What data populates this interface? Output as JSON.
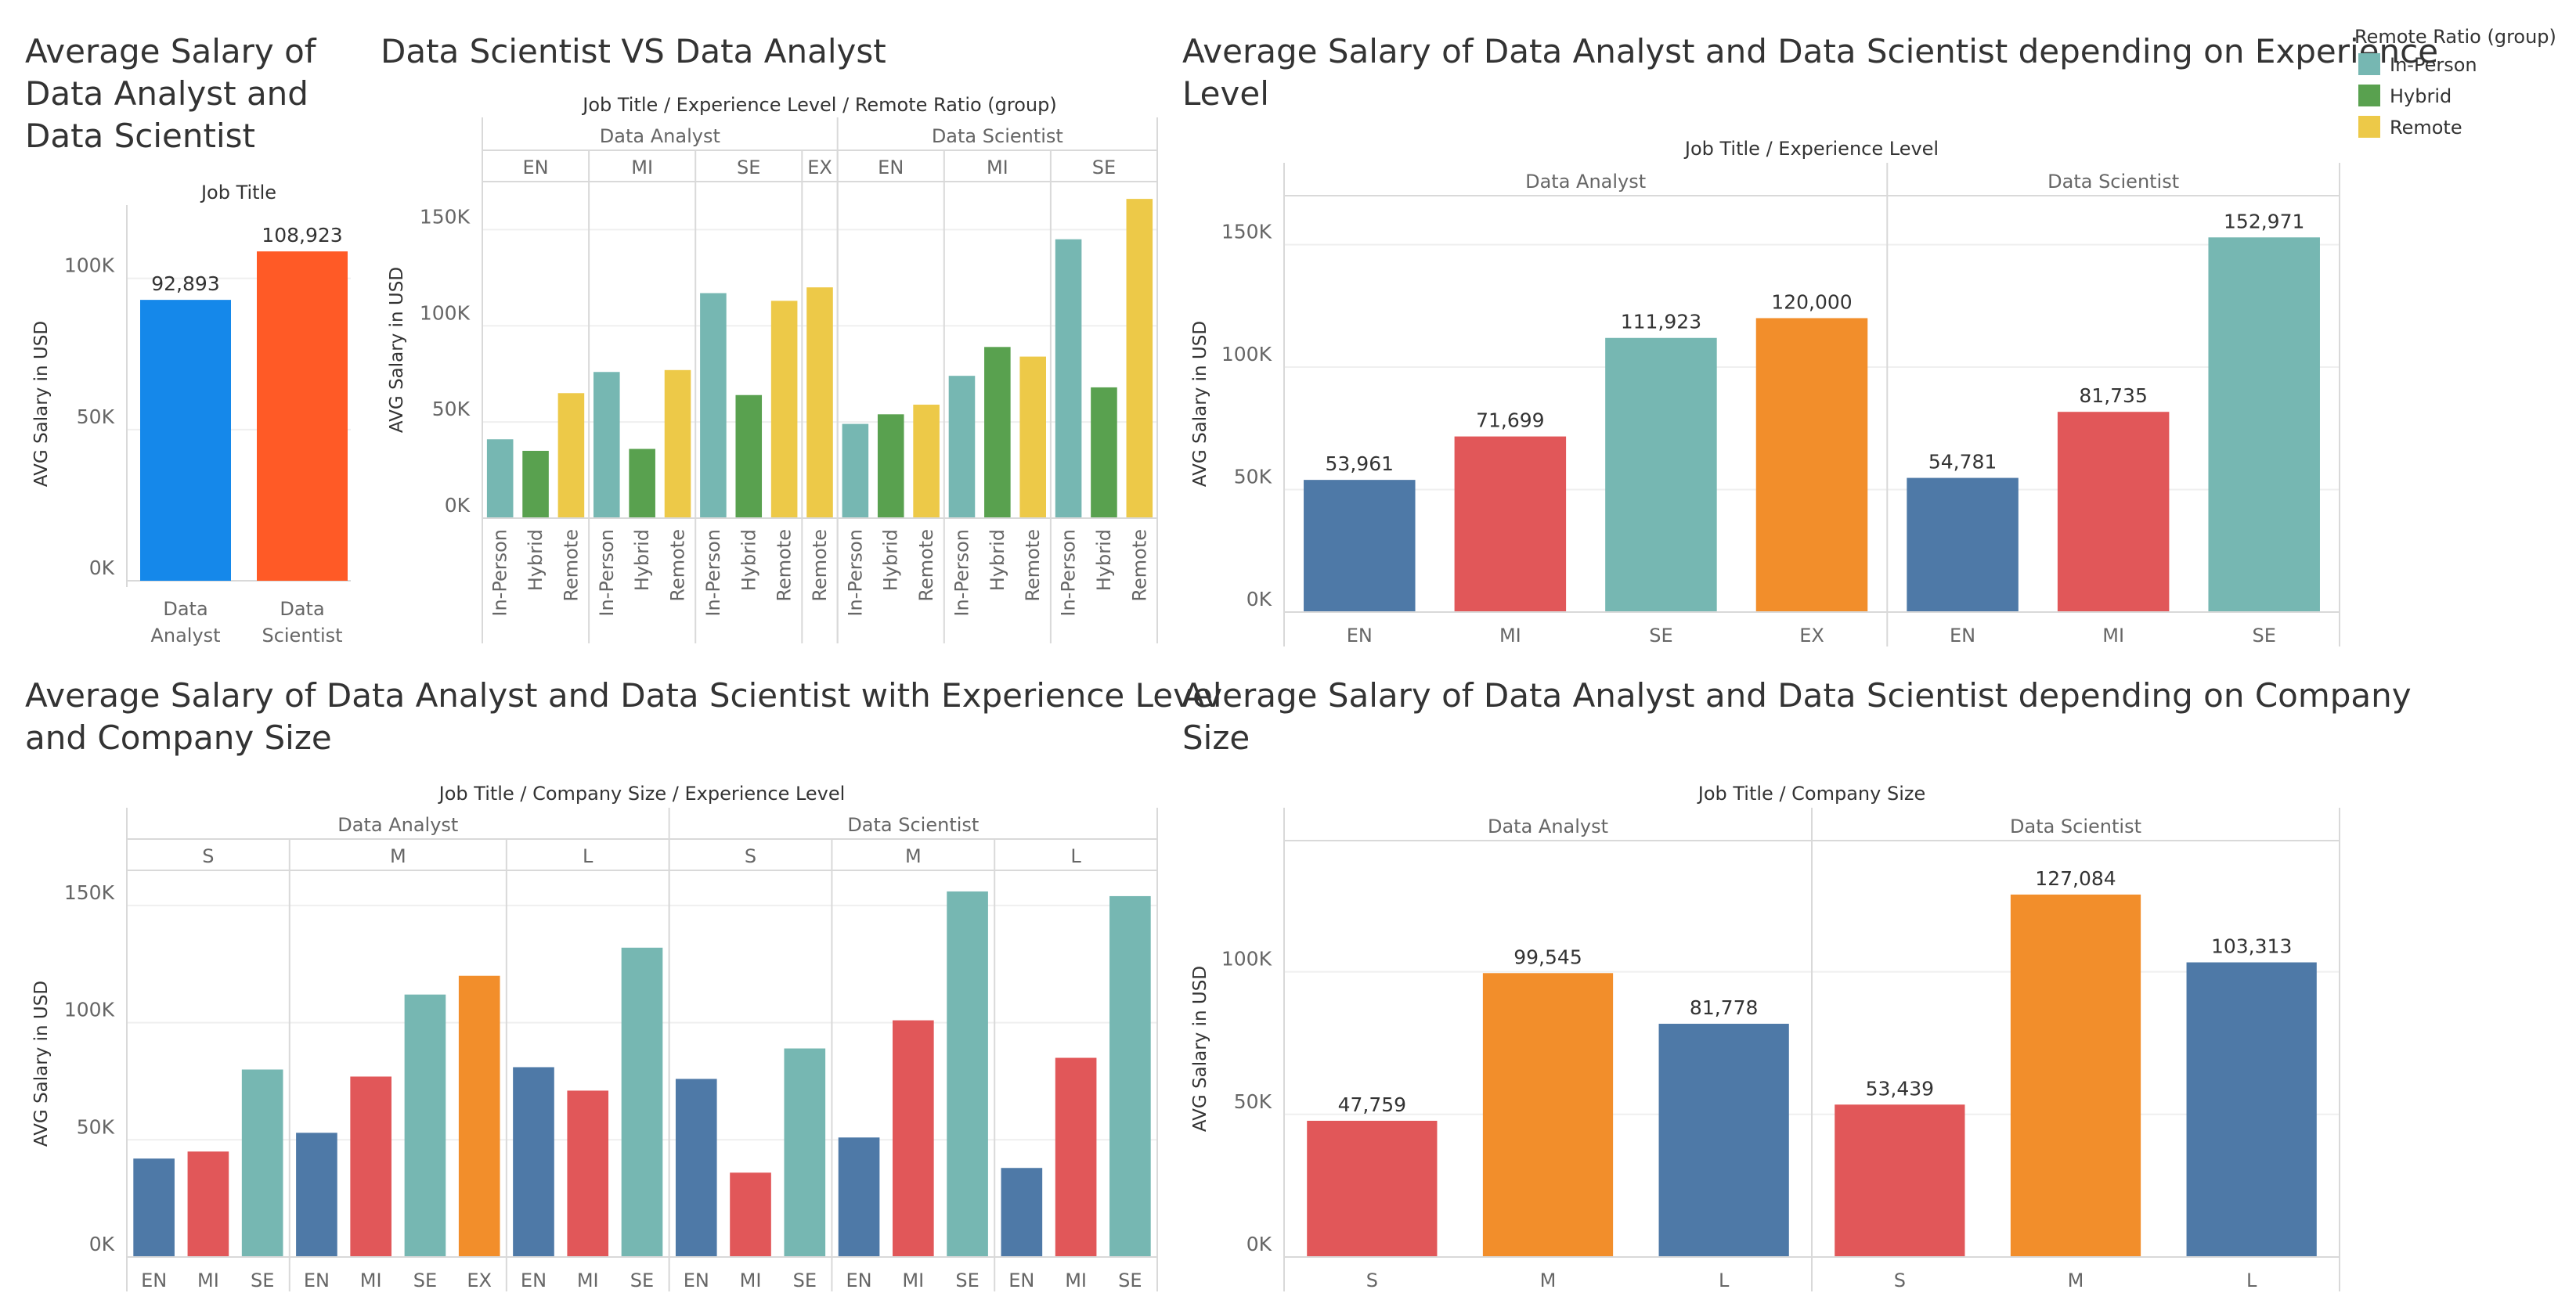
{
  "colors": {
    "blue": "#1588EA",
    "orange_red": "#FF5A26",
    "teal": "#76B7B2",
    "green": "#59A14F",
    "yellow": "#EDC948",
    "steel_blue": "#4E79A7",
    "red": "#E15759",
    "orange": "#F28E2B"
  },
  "legend": {
    "title": "Remote Ratio (group)",
    "items": [
      {
        "label": "In-Person",
        "color": "#76B7B2"
      },
      {
        "label": "Hybrid",
        "color": "#59A14F"
      },
      {
        "label": "Remote",
        "color": "#EDC948"
      }
    ]
  },
  "chart_data": [
    {
      "id": "avg",
      "type": "bar",
      "title": "Average Salary of Data Analyst and Data Scientist",
      "title_lines": [
        "Average Salary of",
        "Data Analyst and",
        "Data Scientist"
      ],
      "header": "Job Title",
      "ylabel": "AVG Salary in USD",
      "ylim": [
        0,
        117000
      ],
      "yticks": [
        0,
        50000,
        100000
      ],
      "ytick_labels": [
        "0K",
        "50K",
        "100K"
      ],
      "categories": [
        "Data Analyst",
        "Data Scientist"
      ],
      "category_lines": [
        [
          "Data",
          "Analyst"
        ],
        [
          "Data",
          "Scientist"
        ]
      ],
      "values": [
        92893,
        108923
      ],
      "labels": [
        "92,893",
        "108,923"
      ],
      "colors": [
        "#1588EA",
        "#FF5A26"
      ]
    },
    {
      "id": "remote",
      "type": "bar",
      "title": "Data Scientist VS Data Analyst",
      "header": "Job Title  /  Experience Level  /  Remote Ratio (group)",
      "ylabel": "AVG Salary in USD",
      "ylim": [
        0,
        175000
      ],
      "yticks": [
        0,
        50000,
        100000,
        150000
      ],
      "ytick_labels": [
        "0K",
        "50K",
        "100K",
        "150K"
      ],
      "groups": [
        {
          "name": "Data Analyst",
          "subgroups": [
            {
              "name": "EN",
              "bars": [
                {
                  "cat": "In-Person",
                  "value": 41000,
                  "color": "#76B7B2"
                },
                {
                  "cat": "Hybrid",
                  "value": 35000,
                  "color": "#59A14F"
                },
                {
                  "cat": "Remote",
                  "value": 65000,
                  "color": "#EDC948"
                }
              ]
            },
            {
              "name": "MI",
              "bars": [
                {
                  "cat": "In-Person",
                  "value": 76000,
                  "color": "#76B7B2"
                },
                {
                  "cat": "Hybrid",
                  "value": 36000,
                  "color": "#59A14F"
                },
                {
                  "cat": "Remote",
                  "value": 77000,
                  "color": "#EDC948"
                }
              ]
            },
            {
              "name": "SE",
              "bars": [
                {
                  "cat": "In-Person",
                  "value": 117000,
                  "color": "#76B7B2"
                },
                {
                  "cat": "Hybrid",
                  "value": 64000,
                  "color": "#59A14F"
                },
                {
                  "cat": "Remote",
                  "value": 113000,
                  "color": "#EDC948"
                }
              ]
            },
            {
              "name": "EX",
              "bars": [
                {
                  "cat": "Remote",
                  "value": 120000,
                  "color": "#EDC948"
                }
              ]
            }
          ]
        },
        {
          "name": "Data Scientist",
          "subgroups": [
            {
              "name": "EN",
              "bars": [
                {
                  "cat": "In-Person",
                  "value": 49000,
                  "color": "#76B7B2"
                },
                {
                  "cat": "Hybrid",
                  "value": 54000,
                  "color": "#59A14F"
                },
                {
                  "cat": "Remote",
                  "value": 59000,
                  "color": "#EDC948"
                }
              ]
            },
            {
              "name": "MI",
              "bars": [
                {
                  "cat": "In-Person",
                  "value": 74000,
                  "color": "#76B7B2"
                },
                {
                  "cat": "Hybrid",
                  "value": 89000,
                  "color": "#59A14F"
                },
                {
                  "cat": "Remote",
                  "value": 84000,
                  "color": "#EDC948"
                }
              ]
            },
            {
              "name": "SE",
              "bars": [
                {
                  "cat": "In-Person",
                  "value": 145000,
                  "color": "#76B7B2"
                },
                {
                  "cat": "Hybrid",
                  "value": 68000,
                  "color": "#59A14F"
                },
                {
                  "cat": "Remote",
                  "value": 166000,
                  "color": "#EDC948"
                }
              ]
            }
          ]
        }
      ]
    },
    {
      "id": "exp",
      "type": "bar",
      "title": "Average Salary of Data Analyst and Data Scientist depending on Experience Level",
      "title_lines": [
        "Average Salary of Data Analyst and Data Scientist depending on Experience",
        "Level"
      ],
      "header": "Job Title  /  Experience Level",
      "ylabel": "AVG Salary in USD",
      "ylim": [
        0,
        170000
      ],
      "yticks": [
        0,
        50000,
        100000,
        150000
      ],
      "ytick_labels": [
        "0K",
        "50K",
        "100K",
        "150K"
      ],
      "groups": [
        {
          "name": "Data Analyst",
          "bars": [
            {
              "cat": "EN",
              "value": 53961,
              "label": "53,961",
              "color": "#4E79A7"
            },
            {
              "cat": "MI",
              "value": 71699,
              "label": "71,699",
              "color": "#E15759"
            },
            {
              "cat": "SE",
              "value": 111923,
              "label": "111,923",
              "color": "#76B7B2"
            },
            {
              "cat": "EX",
              "value": 120000,
              "label": "120,000",
              "color": "#F28E2B"
            }
          ]
        },
        {
          "name": "Data Scientist",
          "bars": [
            {
              "cat": "EN",
              "value": 54781,
              "label": "54,781",
              "color": "#4E79A7"
            },
            {
              "cat": "MI",
              "value": 81735,
              "label": "81,735",
              "color": "#E15759"
            },
            {
              "cat": "SE",
              "value": 152971,
              "label": "152,971",
              "color": "#76B7B2"
            }
          ]
        }
      ]
    },
    {
      "id": "compexp",
      "type": "bar",
      "title": "Average Salary of Data Analyst and Data Scientist with Experience Level and Company Size",
      "title_lines": [
        "Average Salary of Data Analyst and Data Scientist with Experience Level",
        "and Company Size"
      ],
      "header": "Job Title  /  Company Size  /  Experience Level",
      "ylabel": "AVG Salary in USD",
      "ylim": [
        0,
        165000
      ],
      "yticks": [
        0,
        50000,
        100000,
        150000
      ],
      "ytick_labels": [
        "0K",
        "50K",
        "100K",
        "150K"
      ],
      "groups": [
        {
          "name": "Data Analyst",
          "subgroups": [
            {
              "name": "S",
              "bars": [
                {
                  "cat": "EN",
                  "value": 42000,
                  "color": "#4E79A7"
                },
                {
                  "cat": "MI",
                  "value": 45000,
                  "color": "#E15759"
                },
                {
                  "cat": "SE",
                  "value": 80000,
                  "color": "#76B7B2"
                }
              ]
            },
            {
              "name": "M",
              "bars": [
                {
                  "cat": "EN",
                  "value": 53000,
                  "color": "#4E79A7"
                },
                {
                  "cat": "MI",
                  "value": 77000,
                  "color": "#E15759"
                },
                {
                  "cat": "SE",
                  "value": 112000,
                  "color": "#76B7B2"
                },
                {
                  "cat": "EX",
                  "value": 120000,
                  "color": "#F28E2B"
                }
              ]
            },
            {
              "name": "L",
              "bars": [
                {
                  "cat": "EN",
                  "value": 81000,
                  "color": "#4E79A7"
                },
                {
                  "cat": "MI",
                  "value": 71000,
                  "color": "#E15759"
                },
                {
                  "cat": "SE",
                  "value": 132000,
                  "color": "#76B7B2"
                }
              ]
            }
          ]
        },
        {
          "name": "Data Scientist",
          "subgroups": [
            {
              "name": "S",
              "bars": [
                {
                  "cat": "EN",
                  "value": 76000,
                  "color": "#4E79A7"
                },
                {
                  "cat": "MI",
                  "value": 36000,
                  "color": "#E15759"
                },
                {
                  "cat": "SE",
                  "value": 89000,
                  "color": "#76B7B2"
                }
              ]
            },
            {
              "name": "M",
              "bars": [
                {
                  "cat": "EN",
                  "value": 51000,
                  "color": "#4E79A7"
                },
                {
                  "cat": "MI",
                  "value": 101000,
                  "color": "#E15759"
                },
                {
                  "cat": "SE",
                  "value": 156000,
                  "color": "#76B7B2"
                }
              ]
            },
            {
              "name": "L",
              "bars": [
                {
                  "cat": "EN",
                  "value": 38000,
                  "color": "#4E79A7"
                },
                {
                  "cat": "MI",
                  "value": 85000,
                  "color": "#E15759"
                },
                {
                  "cat": "SE",
                  "value": 154000,
                  "color": "#76B7B2"
                }
              ]
            }
          ]
        }
      ]
    },
    {
      "id": "comp",
      "type": "bar",
      "title": "Average Salary of Data Analyst and Data Scientist depending on Company Size",
      "title_lines": [
        "Average Salary of Data Analyst and Data Scientist depending on Company",
        "Size"
      ],
      "header": "Job Title  /  Company Size",
      "ylabel": "AVG Salary in USD",
      "ylim": [
        0,
        146000
      ],
      "yticks": [
        0,
        50000,
        100000
      ],
      "ytick_labels": [
        "0K",
        "50K",
        "100K"
      ],
      "groups": [
        {
          "name": "Data Analyst",
          "bars": [
            {
              "cat": "S",
              "value": 47759,
              "label": "47,759",
              "color": "#E15759"
            },
            {
              "cat": "M",
              "value": 99545,
              "label": "99,545",
              "color": "#F28E2B"
            },
            {
              "cat": "L",
              "value": 81778,
              "label": "81,778",
              "color": "#4E79A7"
            }
          ]
        },
        {
          "name": "Data Scientist",
          "bars": [
            {
              "cat": "S",
              "value": 53439,
              "label": "53,439",
              "color": "#E15759"
            },
            {
              "cat": "M",
              "value": 127084,
              "label": "127,084",
              "color": "#F28E2B"
            },
            {
              "cat": "L",
              "value": 103313,
              "label": "103,313",
              "color": "#4E79A7"
            }
          ]
        }
      ]
    }
  ]
}
